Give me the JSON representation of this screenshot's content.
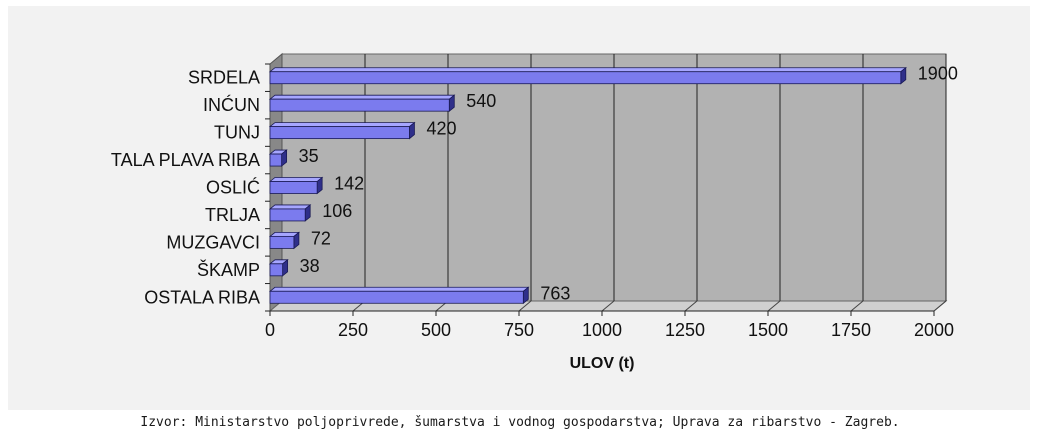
{
  "chart_data": {
    "type": "bar",
    "orientation": "horizontal",
    "three_d": true,
    "categories": [
      "SRDELA",
      "INĆUN",
      "TUNJ",
      "TALA PLAVA RIBA",
      "OSLIĆ",
      "TRLJA",
      "MUZGAVCI",
      "ŠKAMP",
      "OSTALA RIBA"
    ],
    "values": [
      1900,
      540,
      420,
      35,
      142,
      106,
      72,
      38,
      763
    ],
    "data_labels": [
      "1900",
      "540",
      "420",
      "35",
      "142",
      "106",
      "72",
      "38",
      "763"
    ],
    "xlabel": "ULOV (t)",
    "ylabel": "",
    "xlim": [
      0,
      2000
    ],
    "x_ticks": [
      0,
      250,
      500,
      750,
      1000,
      1250,
      1500,
      1750,
      2000
    ],
    "x_tick_labels": [
      "0",
      "250",
      "500",
      "750",
      "1000",
      "1250",
      "1500",
      "1750",
      "2000"
    ],
    "grid": "vertical",
    "legend": "none",
    "colors": {
      "bar_face": "#7b7bee",
      "bar_top": "#a6a6ff",
      "bar_side": "#2f2f8a",
      "plot_wall": "#b2b2b2",
      "left_wall": "#888888",
      "floor": "#d0d0d0",
      "background": "#f2f2f2"
    }
  },
  "source_note": "Izvor: Ministarstvo poljoprivrede, šumarstva i vodnog gospodarstva; Uprava za ribarstvo - Zagreb."
}
